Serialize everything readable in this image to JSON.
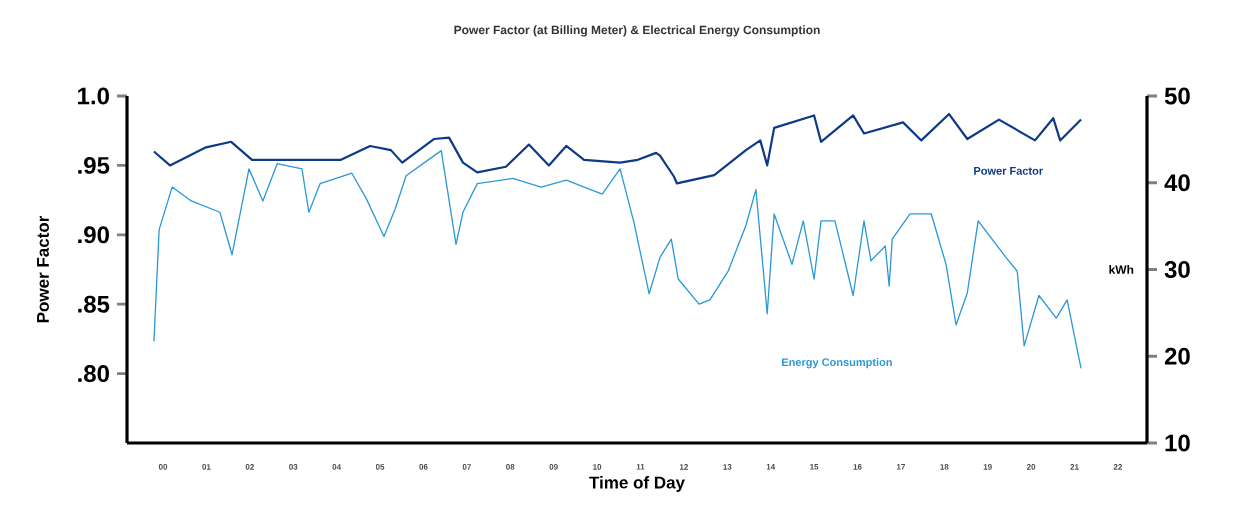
{
  "chart_data": {
    "type": "line",
    "title": "Power Factor (at Billing Meter) & Electrical Energy Consumption",
    "xlabel": "Time of Day",
    "ylabel": "Power Factor",
    "y2label": "kWh",
    "xlim": [
      -0.83,
      22.67
    ],
    "xticks": [
      {
        "value": 0,
        "label": "00"
      },
      {
        "value": 1,
        "label": "01"
      },
      {
        "value": 2,
        "label": "02"
      },
      {
        "value": 3,
        "label": "03"
      },
      {
        "value": 4,
        "label": "04"
      },
      {
        "value": 5,
        "label": "05"
      },
      {
        "value": 6,
        "label": "06"
      },
      {
        "value": 7,
        "label": "07"
      },
      {
        "value": 8,
        "label": "08"
      },
      {
        "value": 9,
        "label": "09"
      },
      {
        "value": 10,
        "label": "10"
      },
      {
        "value": 11,
        "label": "11"
      },
      {
        "value": 12,
        "label": "12"
      },
      {
        "value": 13,
        "label": "13"
      },
      {
        "value": 14,
        "label": "14"
      },
      {
        "value": 15,
        "label": "15"
      },
      {
        "value": 16,
        "label": "16"
      },
      {
        "value": 17,
        "label": "17"
      },
      {
        "value": 18,
        "label": "18"
      },
      {
        "value": 19,
        "label": "19"
      },
      {
        "value": 20,
        "label": "20"
      },
      {
        "value": 21,
        "label": "21"
      },
      {
        "value": 22,
        "label": "22"
      }
    ],
    "ylim": [
      0.75,
      1.0
    ],
    "yticks": [
      {
        "value": 0.8,
        "label": ".80"
      },
      {
        "value": 0.85,
        "label": ".85"
      },
      {
        "value": 0.9,
        "label": ".90"
      },
      {
        "value": 0.95,
        "label": ".95"
      },
      {
        "value": 1.0,
        "label": "1.0"
      }
    ],
    "y2lim": [
      10,
      50
    ],
    "y2ticks": [
      10,
      20,
      30,
      40,
      50
    ],
    "series": [
      {
        "name": "Power Factor",
        "color": "#0c3a87",
        "x": [
          -0.21,
          0.16,
          0.99,
          1.57,
          2.05,
          2.72,
          3.53,
          4.1,
          4.77,
          5.25,
          5.51,
          6.24,
          6.59,
          6.91,
          7.24,
          7.9,
          8.43,
          8.89,
          9.29,
          9.7,
          10.53,
          10.94,
          11.36,
          11.45,
          11.77,
          11.84,
          12.7,
          13.43,
          13.76,
          13.92,
          14.08,
          15.0,
          15.16,
          15.9,
          16.15,
          17.05,
          17.47,
          18.11,
          18.53,
          19.26,
          20.09,
          20.51,
          20.67,
          21.15
        ],
        "values": [
          0.96,
          0.95,
          0.963,
          0.967,
          0.954,
          0.954,
          0.954,
          0.954,
          0.964,
          0.961,
          0.952,
          0.969,
          0.97,
          0.952,
          0.945,
          0.949,
          0.965,
          0.95,
          0.964,
          0.954,
          0.952,
          0.954,
          0.959,
          0.957,
          0.942,
          0.937,
          0.943,
          0.961,
          0.968,
          0.95,
          0.977,
          0.986,
          0.967,
          0.986,
          0.973,
          0.981,
          0.968,
          0.987,
          0.969,
          0.983,
          0.968,
          0.984,
          0.968,
          0.983
        ]
      },
      {
        "name": "Energy Consumption",
        "color": "#2a98d6",
        "axis": "y2",
        "x": [
          -0.21,
          -0.09,
          0.21,
          0.65,
          1.31,
          1.59,
          1.98,
          2.3,
          2.63,
          3.2,
          3.36,
          3.62,
          4.35,
          4.68,
          5.09,
          5.35,
          5.6,
          6.41,
          6.75,
          6.91,
          7.24,
          8.06,
          8.71,
          9.29,
          10.12,
          10.53,
          10.85,
          11.2,
          11.45,
          11.71,
          11.87,
          12.35,
          12.6,
          13.02,
          13.43,
          13.66,
          13.92,
          14.08,
          14.49,
          14.75,
          15.0,
          15.16,
          15.48,
          15.9,
          16.15,
          16.31,
          16.64,
          16.73,
          16.8,
          17.21,
          17.7,
          18.04,
          18.27,
          18.53,
          18.78,
          19.1,
          19.42,
          19.68,
          19.84,
          20.18,
          20.58,
          20.83,
          21.15
        ],
        "values": [
          21.7,
          34.6,
          39.5,
          37.9,
          36.6,
          31.7,
          41.6,
          37.9,
          42.2,
          41.6,
          36.6,
          39.9,
          41.1,
          38.2,
          33.8,
          37.0,
          40.8,
          43.7,
          32.9,
          36.6,
          39.9,
          40.5,
          39.5,
          40.3,
          38.7,
          41.6,
          35.4,
          27.2,
          31.4,
          33.5,
          28.9,
          26.0,
          26.5,
          29.8,
          35.1,
          39.2,
          24.9,
          36.4,
          30.6,
          35.6,
          28.9,
          35.6,
          35.6,
          27.0,
          35.6,
          31.0,
          32.7,
          28.1,
          33.5,
          36.4,
          36.4,
          30.6,
          23.6,
          27.3,
          35.6,
          33.5,
          31.4,
          29.8,
          21.2,
          27.0,
          24.4,
          26.5,
          18.6
        ]
      }
    ]
  }
}
